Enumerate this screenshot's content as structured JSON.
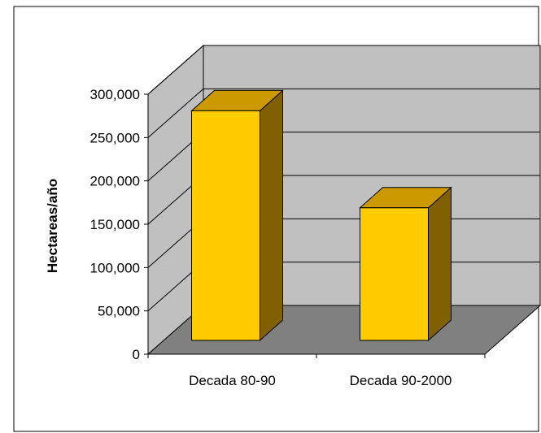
{
  "chart_data": {
    "type": "bar",
    "style": "3d-column",
    "title": "",
    "xlabel": "",
    "ylabel": "Hectareas/año",
    "categories": [
      "Decada 80-90",
      "Decada 90-2000"
    ],
    "series": [
      {
        "values": [
          265000,
          153000
        ]
      }
    ],
    "ylim": [
      0,
      300000
    ],
    "yticks": [
      "0",
      "50,000",
      "100,000",
      "150,000",
      "200,000",
      "250,000",
      "300,000"
    ],
    "ytick_values": [
      0,
      50000,
      100000,
      150000,
      200000,
      250000,
      300000
    ],
    "grid": true,
    "legend": "none",
    "colors": {
      "bar_front": "#FFCC00",
      "bar_top": "#CC9900",
      "bar_side": "#806000",
      "back_wall": "#C0C0C0",
      "side_wall": "#C0C0C0",
      "floor": "#808080",
      "outline": "#000000",
      "chart_area": "#FFFFFF"
    }
  }
}
